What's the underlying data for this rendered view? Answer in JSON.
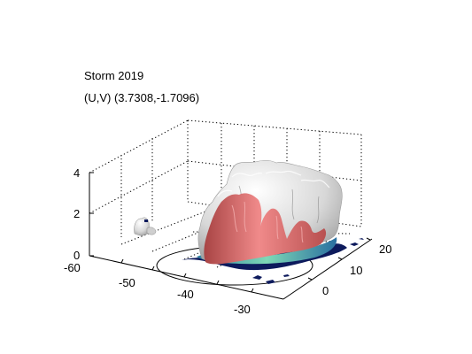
{
  "chart_data": {
    "type": "surface3d",
    "title": "Storm 2019",
    "subtitle_prefix": "(U,V)",
    "subtitle_value": "(3.7308,-1.7096)",
    "xlabel": "",
    "ylabel": "",
    "zlabel": "",
    "x_ticks": [
      "-60",
      "-50",
      "-40",
      "-30"
    ],
    "y_ticks": [
      "0",
      "10",
      "20"
    ],
    "z_ticks": [
      "0",
      "2",
      "4"
    ],
    "xlim": [
      -60,
      -27
    ],
    "ylim": [
      -5,
      25
    ],
    "zlim": [
      0,
      5
    ],
    "grid": true,
    "isosurfaces": [
      {
        "level": "outer",
        "color": "#d9d9d9"
      },
      {
        "level": "inner",
        "color": "#d96a6a"
      },
      {
        "level": "base",
        "color": "#3fb6a8"
      },
      {
        "level": "ground",
        "color": "#0d1a5c"
      }
    ],
    "reference_circle": true
  }
}
